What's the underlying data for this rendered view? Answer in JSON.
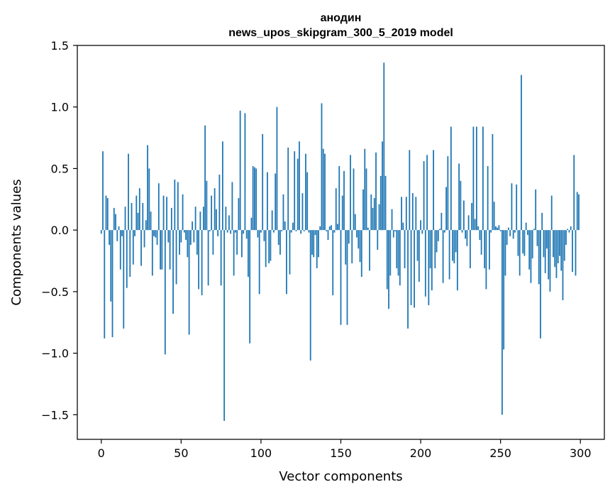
{
  "chart_data": {
    "type": "bar",
    "title_line1": "анодин",
    "title_line2": "news_upos_skipgram_300_5_2019 model",
    "xlabel": "Vector components",
    "ylabel": "Components values",
    "xlim": [
      -15,
      315
    ],
    "ylim": [
      -1.7,
      1.5
    ],
    "xticks": [
      0,
      50,
      100,
      150,
      200,
      250,
      300
    ],
    "yticks": [
      -1.5,
      -1.0,
      -0.5,
      0.0,
      0.5,
      1.0,
      1.5
    ],
    "ytick_labels": [
      "−1.5",
      "−1.0",
      "−0.5",
      "0.0",
      "0.5",
      "1.0",
      "1.5"
    ],
    "bar_color": "#1f77b4",
    "x_start": 0,
    "values": [
      -0.03,
      0.64,
      -0.88,
      0.28,
      0.26,
      -0.12,
      -0.58,
      -0.87,
      0.18,
      0.13,
      -0.09,
      0.03,
      -0.32,
      -0.05,
      -0.8,
      0.19,
      -0.47,
      0.62,
      -0.38,
      0.22,
      -0.28,
      -0.05,
      0.28,
      0.14,
      0.34,
      -0.29,
      0.22,
      -0.14,
      0.08,
      0.69,
      0.5,
      0.15,
      -0.37,
      -0.05,
      -0.06,
      -0.12,
      0.38,
      -0.32,
      -0.32,
      0.28,
      -1.01,
      0.27,
      -0.1,
      -0.32,
      0.18,
      -0.68,
      0.41,
      -0.44,
      0.39,
      -0.2,
      -0.1,
      0.29,
      -0.02,
      -0.08,
      -0.22,
      -0.85,
      -0.12,
      0.07,
      -0.1,
      0.19,
      -0.2,
      -0.48,
      0.15,
      -0.53,
      0.19,
      0.85,
      0.4,
      -0.45,
      -0.01,
      0.28,
      -0.2,
      0.34,
      0.17,
      -0.05,
      0.45,
      -0.45,
      0.72,
      -1.55,
      0.19,
      -0.02,
      0.12,
      -0.03,
      0.39,
      -0.37,
      -0.02,
      -0.2,
      0.26,
      0.97,
      -0.22,
      -0.03,
      0.95,
      -0.07,
      -0.38,
      -0.92,
      0.1,
      0.52,
      0.51,
      0.5,
      -0.06,
      -0.52,
      -0.02,
      0.78,
      -0.09,
      -0.3,
      0.47,
      -0.27,
      -0.25,
      0.16,
      -0.02,
      0.46,
      1.0,
      -0.12,
      -0.2,
      -0.01,
      0.29,
      0.07,
      -0.52,
      0.67,
      -0.36,
      -0.02,
      0.06,
      0.64,
      -0.01,
      0.58,
      0.72,
      -0.03,
      0.3,
      -0.01,
      0.62,
      0.47,
      -0.02,
      -1.06,
      -0.2,
      -0.22,
      -0.04,
      -0.31,
      -0.22,
      0.03,
      1.03,
      0.66,
      0.62,
      -0.01,
      -0.08,
      0.03,
      0.04,
      -0.53,
      -0.02,
      0.34,
      0.05,
      0.52,
      -0.77,
      0.28,
      0.48,
      -0.28,
      -0.77,
      -0.11,
      0.61,
      -0.27,
      0.5,
      0.13,
      -0.06,
      -0.15,
      -0.26,
      -0.38,
      0.33,
      0.66,
      0.5,
      0.02,
      -0.33,
      0.29,
      0.18,
      0.26,
      0.63,
      -0.16,
      0.21,
      0.44,
      0.72,
      1.36,
      0.44,
      -0.48,
      -0.64,
      -0.37,
      0.17,
      -0.06,
      -0.01,
      -0.31,
      -0.37,
      -0.45,
      0.27,
      0.06,
      -0.31,
      0.27,
      -0.8,
      0.65,
      -0.61,
      0.3,
      -0.63,
      0.27,
      -0.25,
      -0.42,
      0.08,
      -0.03,
      0.56,
      -0.54,
      0.61,
      -0.61,
      -0.31,
      -0.49,
      0.65,
      -0.31,
      -0.18,
      -0.09,
      0.01,
      0.14,
      -0.43,
      -0.02,
      0.35,
      0.6,
      -0.4,
      0.84,
      -0.25,
      -0.27,
      -0.18,
      -0.49,
      0.54,
      0.4,
      -0.02,
      0.24,
      -0.07,
      -0.13,
      0.12,
      -0.31,
      0.22,
      0.84,
      0.09,
      0.84,
      0.03,
      -0.08,
      -0.2,
      0.84,
      -0.31,
      -0.48,
      0.52,
      -0.32,
      -0.02,
      0.78,
      0.23,
      0.03,
      0.02,
      0.04,
      -0.01,
      -1.5,
      -0.97,
      -0.37,
      -0.12,
      0.02,
      -0.05,
      0.38,
      -0.07,
      -0.02,
      0.37,
      -0.21,
      -0.37,
      1.26,
      -0.19,
      -0.21,
      0.06,
      -0.04,
      -0.32,
      -0.43,
      -0.23,
      0.01,
      0.33,
      -0.13,
      -0.44,
      -0.88,
      0.14,
      -0.22,
      -0.35,
      -0.15,
      -0.4,
      -0.5,
      0.28,
      -0.22,
      -0.3,
      -0.39,
      -0.27,
      -0.21,
      -0.33,
      -0.57,
      -0.25,
      -0.12,
      0.01,
      -0.02,
      0.03,
      -0.34,
      0.61,
      -0.37,
      0.31,
      0.29
    ]
  }
}
